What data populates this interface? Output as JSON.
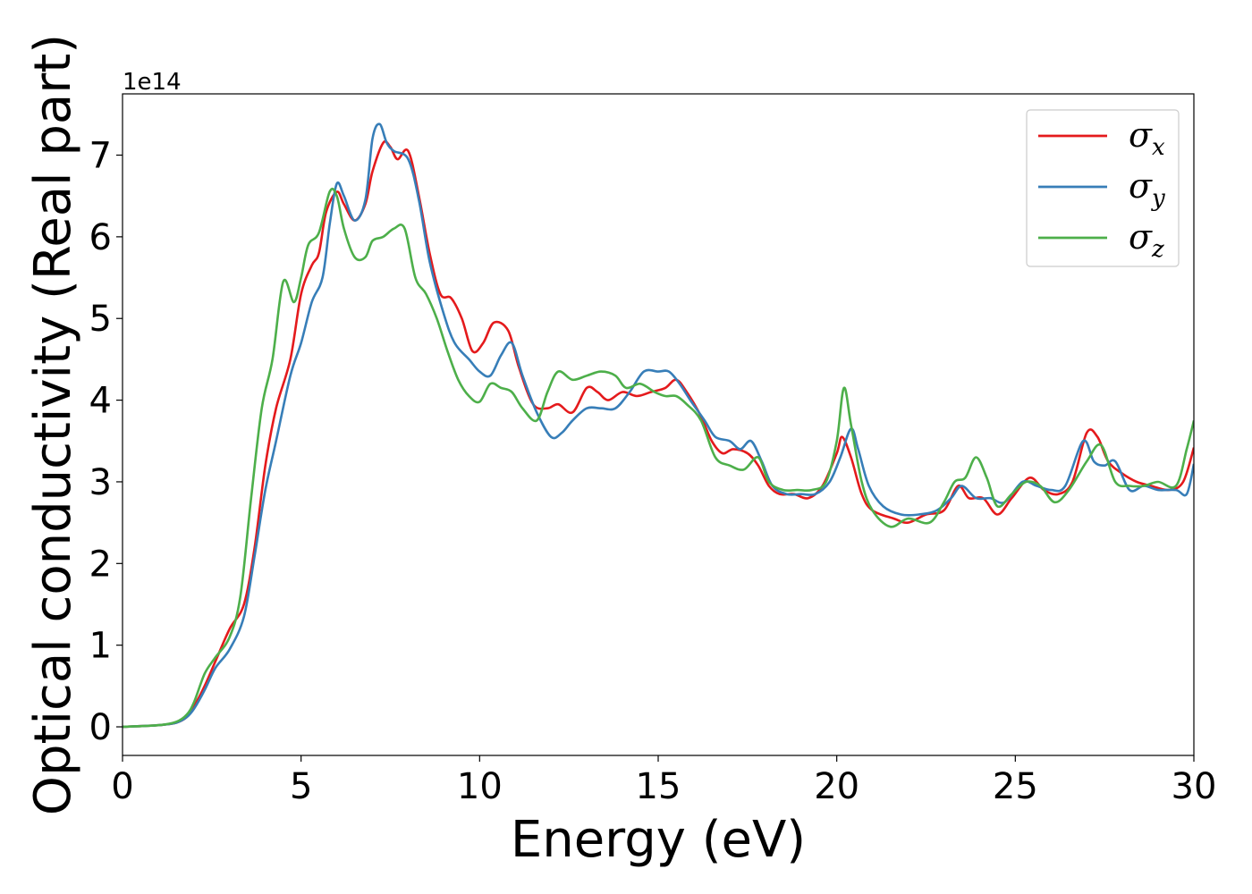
{
  "chart_data": {
    "type": "line",
    "xlabel": "Energy (eV)",
    "ylabel": "Optical conductivity (Real part)",
    "y_offset_label": "1e14",
    "xlim": [
      0,
      30
    ],
    "ylim": [
      -0.35,
      7.75
    ],
    "x_ticks": [
      0,
      5,
      10,
      15,
      20,
      25,
      30
    ],
    "x_tick_labels": [
      "0",
      "5",
      "10",
      "15",
      "20",
      "25",
      "30"
    ],
    "y_ticks": [
      0,
      1,
      2,
      3,
      4,
      5,
      6,
      7
    ],
    "y_tick_labels": [
      "0",
      "1",
      "2",
      "3",
      "4",
      "5",
      "6",
      "7"
    ],
    "grid": false,
    "legend_position": "top-right",
    "series": [
      {
        "name": "σx",
        "legend_symbol": "σ",
        "legend_subscript": "x",
        "color": "#e41a1c",
        "points": [
          [
            0,
            0
          ],
          [
            1,
            0.02
          ],
          [
            1.5,
            0.05
          ],
          [
            1.8,
            0.12
          ],
          [
            2.0,
            0.25
          ],
          [
            2.3,
            0.5
          ],
          [
            2.6,
            0.8
          ],
          [
            3.0,
            1.2
          ],
          [
            3.4,
            1.5
          ],
          [
            3.7,
            2.2
          ],
          [
            4.0,
            3.2
          ],
          [
            4.3,
            3.9
          ],
          [
            4.7,
            4.5
          ],
          [
            5.0,
            5.3
          ],
          [
            5.3,
            5.65
          ],
          [
            5.5,
            5.8
          ],
          [
            5.7,
            6.3
          ],
          [
            6.0,
            6.55
          ],
          [
            6.2,
            6.4
          ],
          [
            6.5,
            6.2
          ],
          [
            6.8,
            6.4
          ],
          [
            7.0,
            6.8
          ],
          [
            7.3,
            7.15
          ],
          [
            7.5,
            7.1
          ],
          [
            7.7,
            6.95
          ],
          [
            8.0,
            7.05
          ],
          [
            8.3,
            6.5
          ],
          [
            8.6,
            5.8
          ],
          [
            8.9,
            5.3
          ],
          [
            9.2,
            5.25
          ],
          [
            9.5,
            5.0
          ],
          [
            9.8,
            4.6
          ],
          [
            10.1,
            4.7
          ],
          [
            10.4,
            4.95
          ],
          [
            10.8,
            4.85
          ],
          [
            11.1,
            4.4
          ],
          [
            11.5,
            3.95
          ],
          [
            11.9,
            3.9
          ],
          [
            12.2,
            3.95
          ],
          [
            12.6,
            3.85
          ],
          [
            13.0,
            4.15
          ],
          [
            13.3,
            4.1
          ],
          [
            13.6,
            4.0
          ],
          [
            14.0,
            4.1
          ],
          [
            14.4,
            4.05
          ],
          [
            14.8,
            4.1
          ],
          [
            15.2,
            4.15
          ],
          [
            15.5,
            4.25
          ],
          [
            15.8,
            4.1
          ],
          [
            16.2,
            3.8
          ],
          [
            16.5,
            3.5
          ],
          [
            16.8,
            3.35
          ],
          [
            17.1,
            3.4
          ],
          [
            17.5,
            3.35
          ],
          [
            17.8,
            3.2
          ],
          [
            18.1,
            2.95
          ],
          [
            18.4,
            2.85
          ],
          [
            18.8,
            2.85
          ],
          [
            19.2,
            2.8
          ],
          [
            19.6,
            2.95
          ],
          [
            20.0,
            3.35
          ],
          [
            20.15,
            3.55
          ],
          [
            20.4,
            3.3
          ],
          [
            20.7,
            2.85
          ],
          [
            21.0,
            2.65
          ],
          [
            21.6,
            2.55
          ],
          [
            22.0,
            2.5
          ],
          [
            22.5,
            2.6
          ],
          [
            23.0,
            2.65
          ],
          [
            23.4,
            2.95
          ],
          [
            23.7,
            2.8
          ],
          [
            24.1,
            2.8
          ],
          [
            24.5,
            2.6
          ],
          [
            24.9,
            2.8
          ],
          [
            25.4,
            3.05
          ],
          [
            25.8,
            2.9
          ],
          [
            26.2,
            2.85
          ],
          [
            26.6,
            3.0
          ],
          [
            27.0,
            3.6
          ],
          [
            27.3,
            3.55
          ],
          [
            27.6,
            3.25
          ],
          [
            28.0,
            3.1
          ],
          [
            28.4,
            3.0
          ],
          [
            28.8,
            2.95
          ],
          [
            29.3,
            2.9
          ],
          [
            29.7,
            3.0
          ],
          [
            30.0,
            3.42
          ]
        ]
      },
      {
        "name": "σy",
        "legend_symbol": "σ",
        "legend_subscript": "y",
        "color": "#377eb8",
        "points": [
          [
            0,
            0
          ],
          [
            1,
            0.02
          ],
          [
            1.5,
            0.05
          ],
          [
            1.8,
            0.12
          ],
          [
            2.0,
            0.22
          ],
          [
            2.3,
            0.45
          ],
          [
            2.6,
            0.72
          ],
          [
            3.0,
            0.95
          ],
          [
            3.4,
            1.35
          ],
          [
            3.7,
            2.1
          ],
          [
            4.0,
            2.9
          ],
          [
            4.3,
            3.5
          ],
          [
            4.7,
            4.3
          ],
          [
            5.0,
            4.7
          ],
          [
            5.3,
            5.2
          ],
          [
            5.6,
            5.5
          ],
          [
            5.8,
            6.15
          ],
          [
            6.0,
            6.65
          ],
          [
            6.2,
            6.5
          ],
          [
            6.5,
            6.2
          ],
          [
            6.8,
            6.45
          ],
          [
            7.0,
            7.2
          ],
          [
            7.2,
            7.38
          ],
          [
            7.4,
            7.15
          ],
          [
            7.6,
            7.05
          ],
          [
            8.0,
            6.95
          ],
          [
            8.3,
            6.45
          ],
          [
            8.6,
            5.7
          ],
          [
            9.0,
            5.05
          ],
          [
            9.3,
            4.7
          ],
          [
            9.7,
            4.5
          ],
          [
            10.0,
            4.35
          ],
          [
            10.3,
            4.3
          ],
          [
            10.6,
            4.55
          ],
          [
            10.9,
            4.7
          ],
          [
            11.2,
            4.3
          ],
          [
            11.6,
            3.85
          ],
          [
            12.0,
            3.55
          ],
          [
            12.3,
            3.6
          ],
          [
            12.6,
            3.75
          ],
          [
            13.0,
            3.9
          ],
          [
            13.4,
            3.9
          ],
          [
            13.8,
            3.9
          ],
          [
            14.2,
            4.1
          ],
          [
            14.6,
            4.35
          ],
          [
            15.0,
            4.35
          ],
          [
            15.3,
            4.35
          ],
          [
            15.6,
            4.2
          ],
          [
            15.9,
            4.0
          ],
          [
            16.3,
            3.75
          ],
          [
            16.6,
            3.55
          ],
          [
            17.0,
            3.5
          ],
          [
            17.3,
            3.4
          ],
          [
            17.6,
            3.5
          ],
          [
            17.9,
            3.25
          ],
          [
            18.2,
            2.95
          ],
          [
            18.6,
            2.85
          ],
          [
            19.0,
            2.85
          ],
          [
            19.4,
            2.85
          ],
          [
            19.8,
            3.0
          ],
          [
            20.1,
            3.3
          ],
          [
            20.4,
            3.65
          ],
          [
            20.6,
            3.4
          ],
          [
            20.9,
            2.95
          ],
          [
            21.3,
            2.7
          ],
          [
            21.8,
            2.6
          ],
          [
            22.3,
            2.6
          ],
          [
            22.8,
            2.65
          ],
          [
            23.2,
            2.8
          ],
          [
            23.5,
            2.95
          ],
          [
            23.9,
            2.8
          ],
          [
            24.3,
            2.8
          ],
          [
            24.7,
            2.75
          ],
          [
            25.2,
            3.0
          ],
          [
            25.6,
            2.95
          ],
          [
            26.0,
            2.9
          ],
          [
            26.4,
            2.95
          ],
          [
            26.9,
            3.5
          ],
          [
            27.2,
            3.25
          ],
          [
            27.5,
            3.2
          ],
          [
            27.8,
            3.25
          ],
          [
            28.2,
            2.9
          ],
          [
            28.6,
            2.95
          ],
          [
            29.0,
            2.9
          ],
          [
            29.5,
            2.9
          ],
          [
            29.8,
            2.85
          ],
          [
            30.0,
            3.22
          ]
        ]
      },
      {
        "name": "σz",
        "legend_symbol": "σ",
        "legend_subscript": "z",
        "color": "#4daf4a",
        "points": [
          [
            0,
            0
          ],
          [
            1,
            0.02
          ],
          [
            1.5,
            0.06
          ],
          [
            1.8,
            0.15
          ],
          [
            2.0,
            0.3
          ],
          [
            2.3,
            0.65
          ],
          [
            2.6,
            0.85
          ],
          [
            3.0,
            1.1
          ],
          [
            3.3,
            1.6
          ],
          [
            3.6,
            2.8
          ],
          [
            3.9,
            3.9
          ],
          [
            4.2,
            4.5
          ],
          [
            4.5,
            5.45
          ],
          [
            4.8,
            5.2
          ],
          [
            5.0,
            5.5
          ],
          [
            5.2,
            5.9
          ],
          [
            5.5,
            6.05
          ],
          [
            5.8,
            6.55
          ],
          [
            6.0,
            6.5
          ],
          [
            6.2,
            6.1
          ],
          [
            6.5,
            5.75
          ],
          [
            6.8,
            5.75
          ],
          [
            7.0,
            5.95
          ],
          [
            7.3,
            6.0
          ],
          [
            7.6,
            6.1
          ],
          [
            7.9,
            6.1
          ],
          [
            8.2,
            5.5
          ],
          [
            8.5,
            5.3
          ],
          [
            8.8,
            5.0
          ],
          [
            9.1,
            4.6
          ],
          [
            9.4,
            4.25
          ],
          [
            9.7,
            4.05
          ],
          [
            10.0,
            3.98
          ],
          [
            10.3,
            4.2
          ],
          [
            10.6,
            4.15
          ],
          [
            10.9,
            4.1
          ],
          [
            11.2,
            3.9
          ],
          [
            11.6,
            3.75
          ],
          [
            11.9,
            4.1
          ],
          [
            12.2,
            4.35
          ],
          [
            12.6,
            4.25
          ],
          [
            13.0,
            4.3
          ],
          [
            13.4,
            4.35
          ],
          [
            13.8,
            4.3
          ],
          [
            14.1,
            4.15
          ],
          [
            14.5,
            4.2
          ],
          [
            14.9,
            4.1
          ],
          [
            15.2,
            4.05
          ],
          [
            15.5,
            4.05
          ],
          [
            15.8,
            3.95
          ],
          [
            16.2,
            3.75
          ],
          [
            16.6,
            3.3
          ],
          [
            17.0,
            3.2
          ],
          [
            17.4,
            3.15
          ],
          [
            17.8,
            3.3
          ],
          [
            18.1,
            3.0
          ],
          [
            18.5,
            2.9
          ],
          [
            18.9,
            2.9
          ],
          [
            19.3,
            2.9
          ],
          [
            19.7,
            3.0
          ],
          [
            20.0,
            3.5
          ],
          [
            20.2,
            4.15
          ],
          [
            20.4,
            3.7
          ],
          [
            20.7,
            3.0
          ],
          [
            21.0,
            2.65
          ],
          [
            21.5,
            2.45
          ],
          [
            22.0,
            2.55
          ],
          [
            22.6,
            2.5
          ],
          [
            23.0,
            2.75
          ],
          [
            23.3,
            3.0
          ],
          [
            23.6,
            3.05
          ],
          [
            23.9,
            3.3
          ],
          [
            24.2,
            3.05
          ],
          [
            24.5,
            2.7
          ],
          [
            24.9,
            2.85
          ],
          [
            25.3,
            3.0
          ],
          [
            25.7,
            2.95
          ],
          [
            26.1,
            2.75
          ],
          [
            26.5,
            2.9
          ],
          [
            27.0,
            3.25
          ],
          [
            27.4,
            3.45
          ],
          [
            27.8,
            3.0
          ],
          [
            28.2,
            2.95
          ],
          [
            28.6,
            2.95
          ],
          [
            29.0,
            3.0
          ],
          [
            29.5,
            2.95
          ],
          [
            29.8,
            3.4
          ],
          [
            30.0,
            3.75
          ]
        ]
      }
    ]
  }
}
